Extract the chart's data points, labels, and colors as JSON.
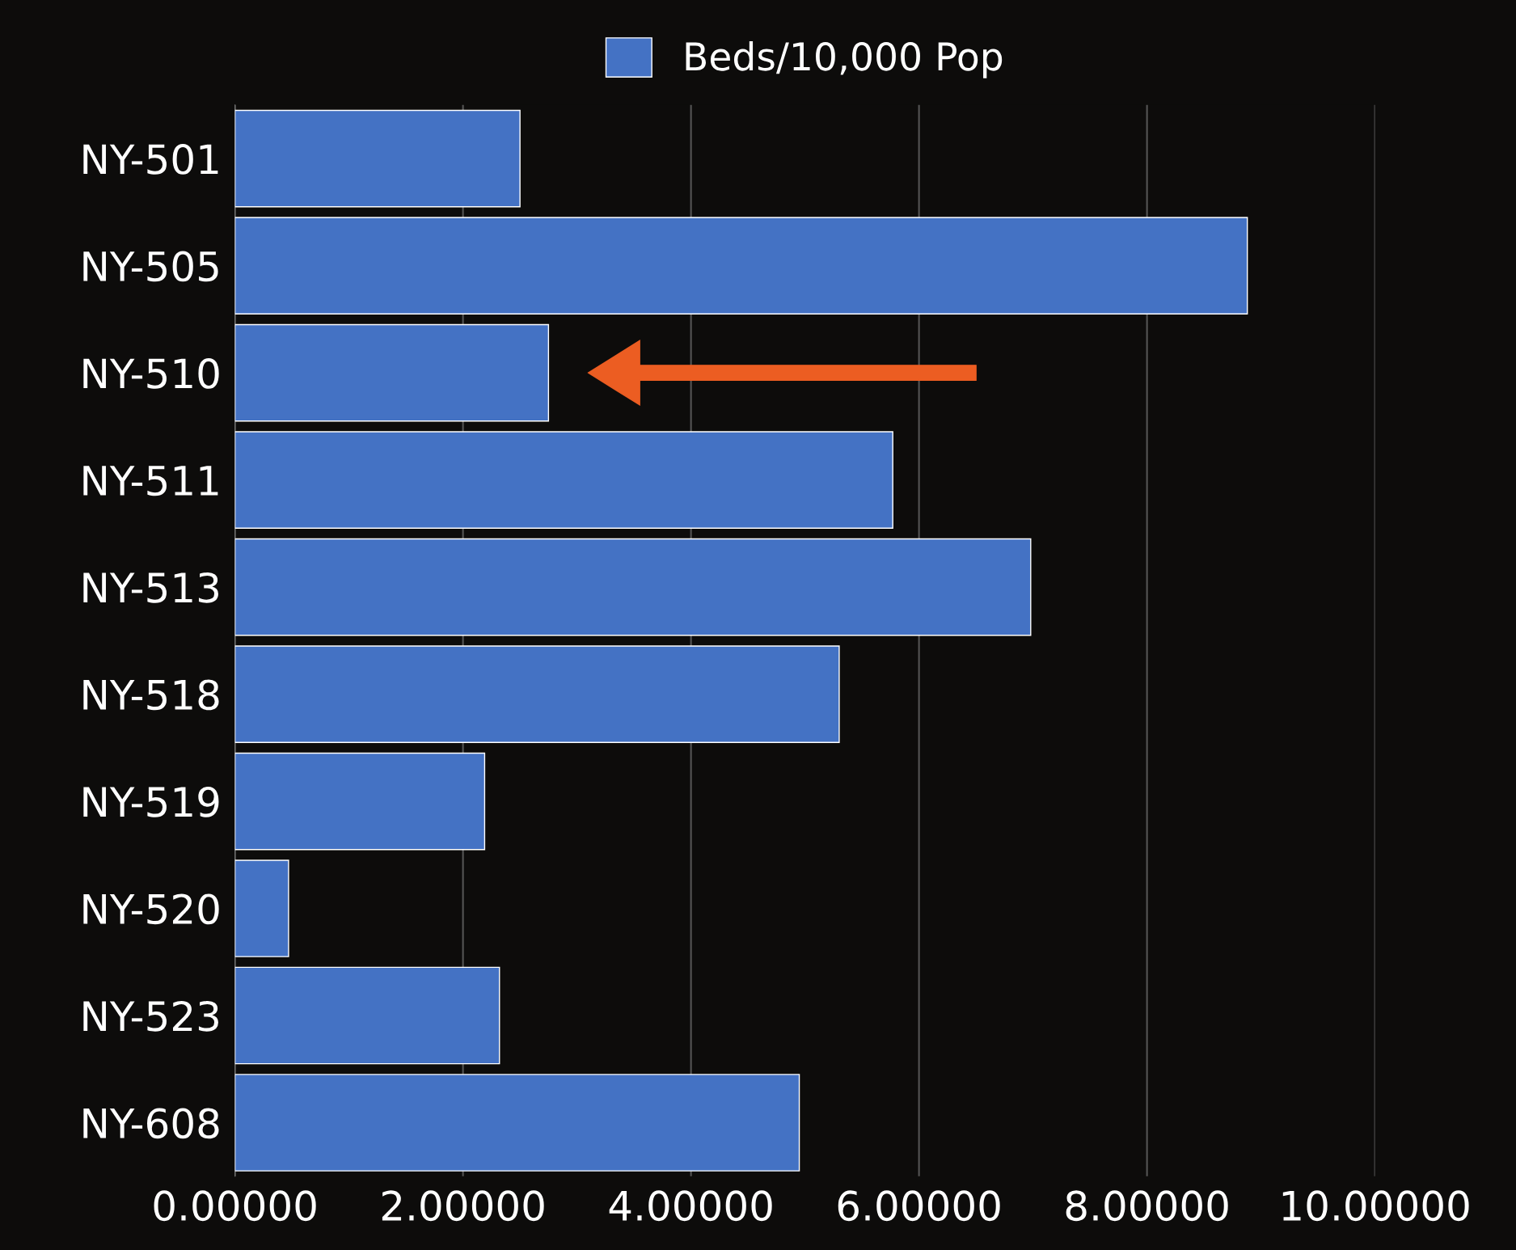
{
  "chart_data": {
    "type": "bar",
    "orientation": "horizontal",
    "categories": [
      "NY-501",
      "NY-505",
      "NY-510",
      "NY-511",
      "NY-513",
      "NY-518",
      "NY-519",
      "NY-520",
      "NY-523",
      "NY-608"
    ],
    "series": [
      {
        "name": "Beds/10,000 Pop",
        "color": "#4472c4",
        "values": [
          2.5,
          8.88,
          2.75,
          5.77,
          6.98,
          5.3,
          2.19,
          0.47,
          2.32,
          4.95
        ]
      }
    ],
    "xlim": [
      0,
      10
    ],
    "xticks": [
      {
        "value": 0,
        "label": "0.00000"
      },
      {
        "value": 2,
        "label": "2.00000"
      },
      {
        "value": 4,
        "label": "4.00000"
      },
      {
        "value": 6,
        "label": "6.00000"
      },
      {
        "value": 8,
        "label": "8.00000"
      },
      {
        "value": 10,
        "label": "10.00000"
      }
    ],
    "grid": "x",
    "legend": "top"
  }
}
